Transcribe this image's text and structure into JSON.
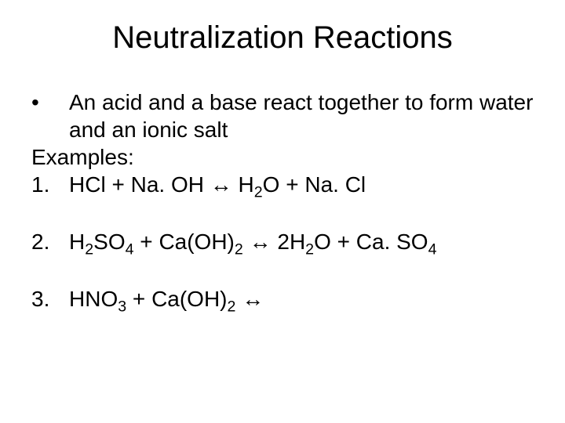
{
  "title": "Neutralization Reactions",
  "bullet": {
    "mark": "•",
    "text": "An acid and a base react together to form water and an ionic salt"
  },
  "examples_label": "Examples:",
  "arrow": "↔",
  "items": [
    {
      "num": "1.",
      "lhs_a": "HCl",
      "lhs_b": "Na. OH",
      "rhs_a_pre": "H",
      "rhs_a_sub": "2",
      "rhs_a_post": "O",
      "rhs_b": "Na. Cl"
    },
    {
      "num": "2.",
      "lhs_a_pre": "H",
      "lhs_a_sub1": "2",
      "lhs_a_mid": "SO",
      "lhs_a_sub2": "4",
      "lhs_b_pre": "Ca(OH)",
      "lhs_b_sub": "2",
      "rhs_a_coef": "2",
      "rhs_a_pre": "H",
      "rhs_a_sub": "2",
      "rhs_a_post": "O",
      "rhs_b_pre": "Ca. SO",
      "rhs_b_sub": "4"
    },
    {
      "num": "3.",
      "lhs_a_pre": "HNO",
      "lhs_a_sub": "3",
      "lhs_b_pre": "Ca(OH)",
      "lhs_b_sub": "2"
    }
  ],
  "style": {
    "background": "#ffffff",
    "text_color": "#000000",
    "title_fontsize": 40,
    "body_fontsize": 28,
    "font_family": "Arial"
  }
}
